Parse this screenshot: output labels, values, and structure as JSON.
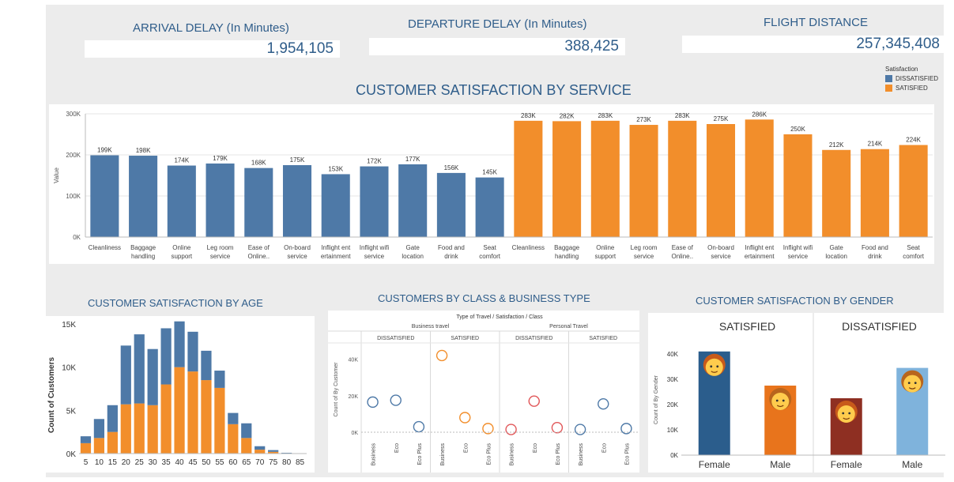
{
  "kpis": [
    {
      "title": "ARRIVAL DELAY (In Minutes)",
      "value": "1,954,105"
    },
    {
      "title": "DEPARTURE DELAY (In Minutes)",
      "value": "388,425"
    },
    {
      "title": "FLIGHT DISTANCE",
      "value": "257,345,408"
    }
  ],
  "colors": {
    "dissatisfied": "#4e79a7",
    "satisfied": "#f28e2b",
    "title": "#2f5d8a"
  },
  "legend": {
    "title": "Satisfaction",
    "items": [
      "DISSATISFIED",
      "SATISFIED"
    ]
  },
  "chart_data": [
    {
      "type": "bar",
      "title": "CUSTOMER SATISFACTION BY SERVICE",
      "ylabel": "Value",
      "ylim": [
        0,
        300000
      ],
      "yticks": [
        "0K",
        "100K",
        "200K",
        "300K"
      ],
      "categories": [
        [
          "Cleanliness"
        ],
        [
          "Baggage",
          "handling"
        ],
        [
          "Online",
          "support"
        ],
        [
          "Leg room",
          "service"
        ],
        [
          "Ease of",
          "Online.."
        ],
        [
          "On-board",
          "service"
        ],
        [
          "Inflight ent",
          "ertainment"
        ],
        [
          "Inflight wifi",
          "service"
        ],
        [
          "Gate",
          "location"
        ],
        [
          "Food and",
          "drink"
        ],
        [
          "Seat",
          "comfort"
        ]
      ],
      "series": [
        {
          "name": "DISSATISFIED",
          "values": [
            199000,
            198000,
            174000,
            179000,
            168000,
            175000,
            153000,
            172000,
            177000,
            156000,
            145000
          ],
          "labels": [
            "199K",
            "198K",
            "174K",
            "179K",
            "168K",
            "175K",
            "153K",
            "172K",
            "177K",
            "156K",
            "145K"
          ]
        },
        {
          "name": "SATISFIED",
          "values": [
            283000,
            282000,
            283000,
            273000,
            283000,
            275000,
            286000,
            250000,
            212000,
            214000,
            224000
          ],
          "labels": [
            "283K",
            "282K",
            "283K",
            "273K",
            "283K",
            "275K",
            "286K",
            "250K",
            "212K",
            "214K",
            "224K"
          ]
        }
      ]
    },
    {
      "type": "bar",
      "title": "CUSTOMER SATISFACTION BY AGE",
      "ylabel": "Count of Customers",
      "ylim": [
        0,
        15000
      ],
      "yticks": [
        "0K",
        "5K",
        "10K",
        "15K"
      ],
      "x": [
        "5",
        "10",
        "15",
        "20",
        "25",
        "30",
        "35",
        "40",
        "45",
        "50",
        "55",
        "60",
        "65",
        "70",
        "75",
        "80",
        "85"
      ],
      "series": [
        {
          "name": "SATISFIED",
          "values": [
            1200,
            1800,
            2500,
            5700,
            5800,
            5600,
            8000,
            10000,
            9500,
            8500,
            7600,
            3400,
            1800,
            450,
            200,
            30,
            0
          ]
        },
        {
          "name": "DISSATISFIED",
          "values": [
            800,
            2200,
            3100,
            6800,
            8000,
            6500,
            6500,
            5300,
            4600,
            3400,
            2000,
            1300,
            1700,
            400,
            200,
            60,
            40
          ]
        }
      ]
    },
    {
      "type": "scatter",
      "title": "CUSTOMERS BY CLASS & BUSINESS TYPE",
      "header": "Type of Travel / Satisfaction / Class",
      "ylabel": "Count of By Customer",
      "ylim": [
        0,
        45000
      ],
      "yticks": [
        "0K",
        "20K",
        "40K"
      ],
      "groups": [
        {
          "travel": "Business travel",
          "satisfaction": "DISSATISFIED",
          "points": [
            {
              "class": "Business",
              "value": 16500
            },
            {
              "class": "Eco",
              "value": 17500
            },
            {
              "class": "Eco Plus",
              "value": 3000
            }
          ]
        },
        {
          "travel": "Business travel",
          "satisfaction": "SATISFIED",
          "points": [
            {
              "class": "Business",
              "value": 42000
            },
            {
              "class": "Eco",
              "value": 8000
            },
            {
              "class": "Eco Plus",
              "value": 2000
            }
          ]
        },
        {
          "travel": "Personal Travel",
          "satisfaction": "DISSATISFIED",
          "points": [
            {
              "class": "Business",
              "value": 1500
            },
            {
              "class": "Eco",
              "value": 17000
            },
            {
              "class": "Eco Plus",
              "value": 2500
            }
          ]
        },
        {
          "travel": "Personal Travel",
          "satisfaction": "SATISFIED",
          "points": [
            {
              "class": "Business",
              "value": 1500
            },
            {
              "class": "Eco",
              "value": 15500
            },
            {
              "class": "Eco Plus",
              "value": 2000
            }
          ]
        }
      ],
      "travel_labels": [
        "Business travel",
        "Personal Travel"
      ],
      "group_colors": [
        "#4e79a7",
        "#f28e2b",
        "#e15759",
        "#4e79a7"
      ]
    },
    {
      "type": "bar",
      "title": "CUSTOMER SATISFACTION  BY GENDER",
      "ylabel": "Count of By Gender",
      "ylim": [
        0,
        45000
      ],
      "yticks": [
        "0K",
        "10K",
        "20K",
        "30K",
        "40K"
      ],
      "panels": [
        {
          "name": "SATISFIED",
          "bars": [
            {
              "category": "Female",
              "value": 41000,
              "color": "#2b5d8c"
            },
            {
              "category": "Male",
              "value": 27500,
              "color": "#e8741c"
            }
          ]
        },
        {
          "name": "DISSATISFIED",
          "bars": [
            {
              "category": "Female",
              "value": 22500,
              "color": "#8e2f22"
            },
            {
              "category": "Male",
              "value": 34500,
              "color": "#7fb3dc"
            }
          ]
        }
      ]
    }
  ]
}
